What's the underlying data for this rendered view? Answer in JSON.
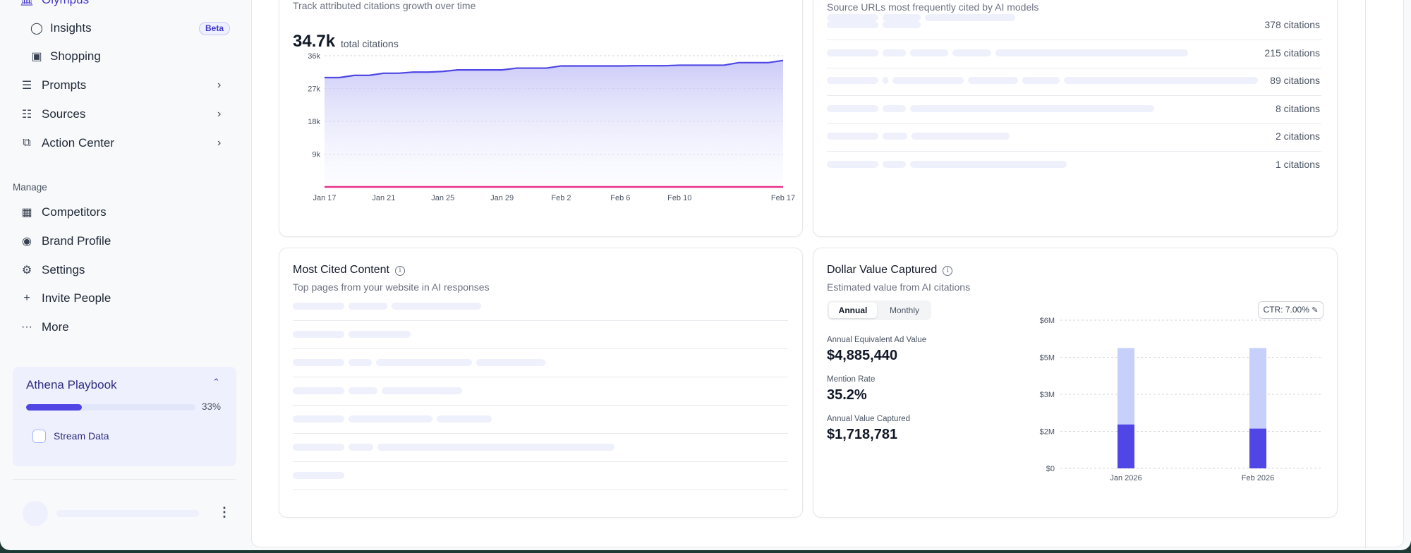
{
  "sidebar": {
    "top_item": {
      "label": "Olympus",
      "icon": "bank-icon"
    },
    "items": [
      {
        "label": "Insights",
        "icon": "lightbulb-icon",
        "badge": "Beta"
      },
      {
        "label": "Shopping",
        "icon": "shopping-bag-icon"
      },
      {
        "label": "Prompts",
        "icon": "list-icon"
      },
      {
        "label": "Sources",
        "icon": "tree-icon"
      },
      {
        "label": "Action Center",
        "icon": "task-icon"
      }
    ],
    "manage_label": "Manage",
    "manage_items": [
      {
        "label": "Competitors",
        "icon": "building-icon"
      },
      {
        "label": "Brand Profile",
        "icon": "palette-icon"
      },
      {
        "label": "Settings",
        "icon": "gear-icon"
      },
      {
        "label": "Invite People",
        "icon": "plus-icon"
      },
      {
        "label": "More",
        "icon": "ellipsis-icon"
      }
    ],
    "playbook": {
      "title": "Athena Playbook",
      "progress_percent": 33,
      "progress_label": "33%",
      "tasks": [
        {
          "label": "Stream Data",
          "checked": false
        }
      ]
    }
  },
  "citations_card": {
    "subtitle": "Track attributed citations growth over time",
    "total": "34.7k",
    "total_label": "total citations"
  },
  "sources_card": {
    "subtitle": "Source URLs most frequently cited by AI models",
    "rows": [
      "378 citations",
      "215 citations",
      "89 citations",
      "8 citations",
      "2 citations",
      "1 citations"
    ]
  },
  "content_card": {
    "title": "Most Cited Content",
    "subtitle": "Top pages from your website in AI responses"
  },
  "dollar_card": {
    "title": "Dollar Value Captured",
    "subtitle": "Estimated value from AI citations",
    "toggle": {
      "options": [
        "Annual",
        "Monthly"
      ],
      "selected": "Annual"
    },
    "ctr_label": "CTR: 7.00%",
    "metrics": [
      {
        "label": "Annual Equivalent Ad Value",
        "value": "$4,885,440"
      },
      {
        "label": "Mention Rate",
        "value": "35.2%"
      },
      {
        "label": "Annual Value Captured",
        "value": "$1,718,781"
      }
    ]
  },
  "colors": {
    "accent": "#4f46e5",
    "light_bar": "#c7d0fb",
    "pink": "#e6338a",
    "skeleton": "#eef0fb"
  },
  "chart_data": [
    {
      "type": "area",
      "x": [
        "Jan 17",
        "Jan 18",
        "Jan 19",
        "Jan 20",
        "Jan 21",
        "Jan 22",
        "Jan 23",
        "Jan 24",
        "Jan 25",
        "Jan 26",
        "Jan 27",
        "Jan 28",
        "Jan 29",
        "Jan 30",
        "Jan 31",
        "Feb 1",
        "Feb 2",
        "Feb 3",
        "Feb 4",
        "Feb 5",
        "Feb 6",
        "Feb 7",
        "Feb 8",
        "Feb 9",
        "Feb 10",
        "Feb 11",
        "Feb 12",
        "Feb 13",
        "Feb 14",
        "Feb 15",
        "Feb 16",
        "Feb 17"
      ],
      "xticks": [
        "Jan 17",
        "Jan 21",
        "Jan 25",
        "Jan 29",
        "Feb 2",
        "Feb 6",
        "Feb 10",
        "Feb 17"
      ],
      "yticks": [
        "9k",
        "18k",
        "27k",
        "36k"
      ],
      "ylim": [
        0,
        36000
      ],
      "grid": true,
      "series": [
        {
          "values": [
            30000,
            30000,
            30600,
            30600,
            31200,
            31200,
            31500,
            31500,
            31700,
            32100,
            32100,
            32100,
            32100,
            32600,
            32600,
            32600,
            33200,
            33200,
            33200,
            33200,
            33200,
            33250,
            33250,
            33250,
            33400,
            33400,
            33400,
            33400,
            34100,
            34100,
            34100,
            34700
          ],
          "color": "#4f46e5"
        },
        {
          "values": [
            0,
            0,
            0,
            0,
            0,
            0,
            0,
            0,
            0,
            0,
            0,
            0,
            0,
            0,
            0,
            0,
            0,
            0,
            0,
            0,
            0,
            0,
            0,
            0,
            0,
            0,
            0,
            0,
            0,
            0,
            0,
            0
          ],
          "color": "#e6338a"
        }
      ]
    },
    {
      "type": "bar",
      "stacked": true,
      "categories": [
        "Jan 2026",
        "Feb 2026"
      ],
      "yticks": [
        0,
        1600000,
        3200000,
        4800000,
        6400000
      ],
      "ytick_labels": [
        "$0",
        "$2M",
        "$3M",
        "$5M",
        "$6M"
      ],
      "ylim": [
        0,
        6400000
      ],
      "grid": true,
      "series": [
        {
          "values": [
            1900000,
            1720000
          ],
          "color": "#4f46e5"
        },
        {
          "values": [
            3300000,
            3480000
          ],
          "color": "#c7d0fb"
        }
      ]
    }
  ]
}
